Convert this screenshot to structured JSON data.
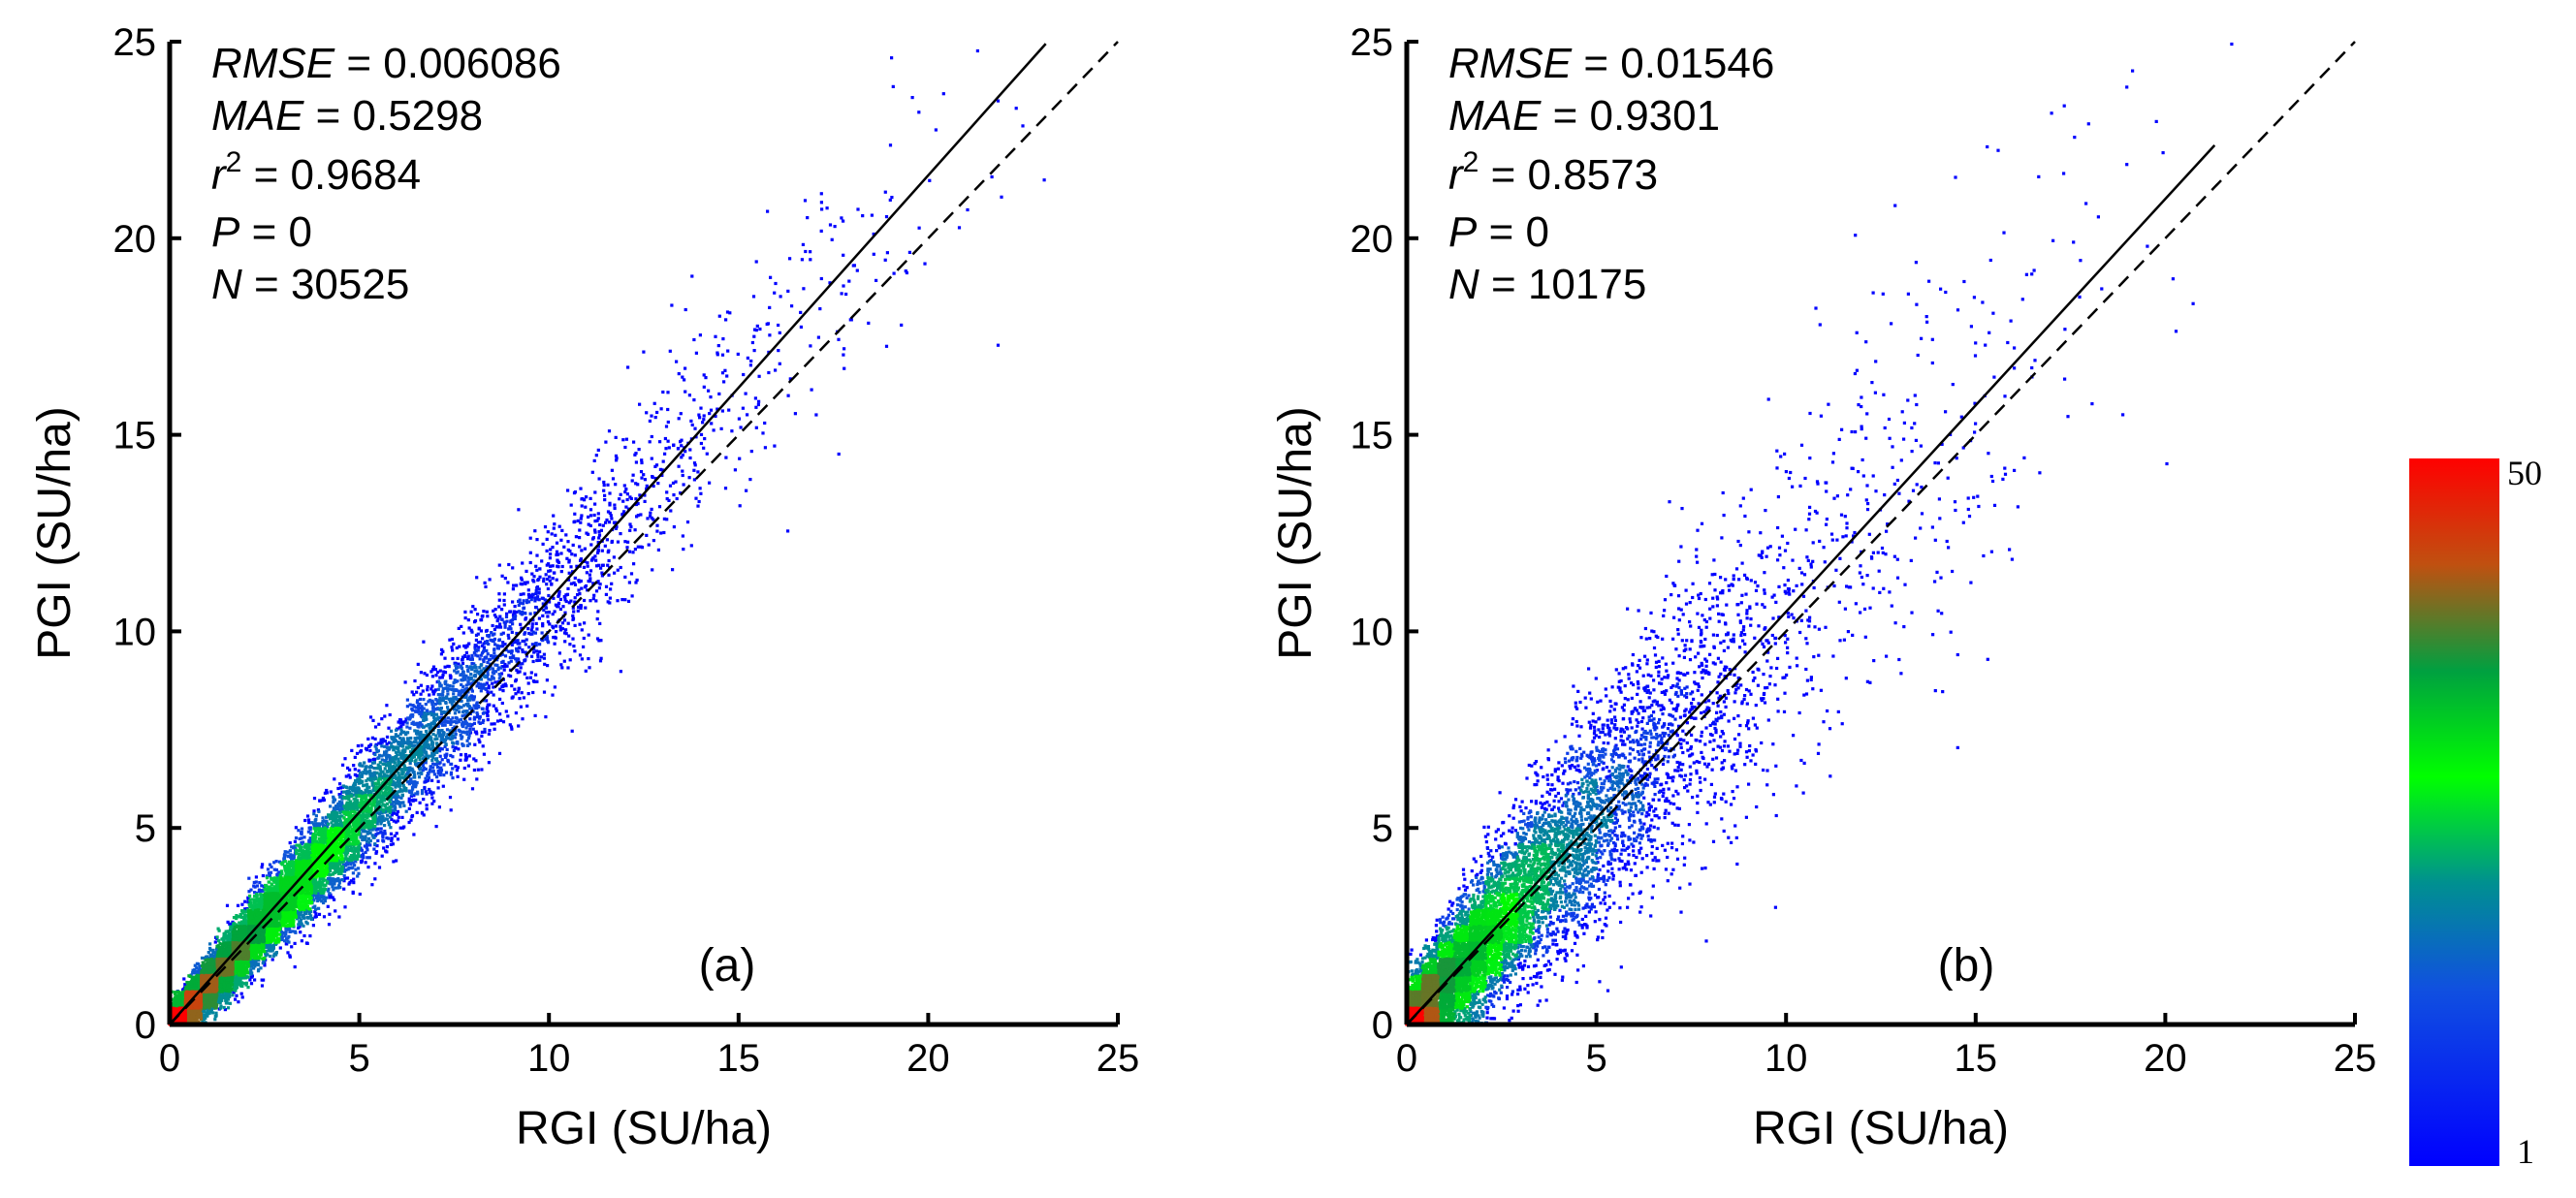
{
  "colors": {
    "background": "#ffffff",
    "axis": "#000000",
    "fit_line": "#000000",
    "one_to_one_line": "#000000",
    "density_low": "#0000ff",
    "density_mid": "#00e000",
    "density_high": "#ff0000"
  },
  "chart_data": [
    {
      "type": "scatter",
      "panel_label": "(a)",
      "xlabel": "RGI (SU/ha)",
      "ylabel": "PGI (SU/ha)",
      "xlim": [
        0,
        25
      ],
      "ylim": [
        0,
        25
      ],
      "x_ticks": [
        0,
        5,
        10,
        15,
        20,
        25
      ],
      "y_ticks": [
        0,
        5,
        10,
        15,
        20,
        25
      ],
      "stats": [
        {
          "var": "RMSE",
          "value": "0.006086"
        },
        {
          "var": "MAE",
          "value": "0.5298"
        },
        {
          "var": "r",
          "sup": "2",
          "value": "0.9684"
        },
        {
          "var": "P",
          "value": "0"
        },
        {
          "var": "N",
          "value": "30525"
        }
      ],
      "fit_line": {
        "slope": 1.08,
        "intercept": 0.0,
        "x_end": 23.1,
        "style": "solid"
      },
      "one_to_one_line": {
        "slope": 1.0,
        "intercept": 0.0,
        "x_end": 25,
        "style": "dashed"
      },
      "scatter_model": {
        "n_points": 30525,
        "x_rate": 0.3,
        "noise_sd_min": 0.25,
        "noise_sd_factor": 0.085,
        "bias": -0.1,
        "seed": 11,
        "x_max": 24
      }
    },
    {
      "type": "scatter",
      "panel_label": "(b)",
      "xlabel": "RGI (SU/ha)",
      "ylabel": "PGI (SU/ha)",
      "xlim": [
        0,
        25
      ],
      "ylim": [
        0,
        25
      ],
      "x_ticks": [
        0,
        5,
        10,
        15,
        20,
        25
      ],
      "y_ticks": [
        0,
        5,
        10,
        15,
        20,
        25
      ],
      "stats": [
        {
          "var": "RMSE",
          "value": "0.01546"
        },
        {
          "var": "MAE",
          "value": "0.9301"
        },
        {
          "var": "r",
          "sup": "2",
          "value": "0.8573"
        },
        {
          "var": "P",
          "value": "0"
        },
        {
          "var": "N",
          "value": "10175"
        }
      ],
      "fit_line": {
        "slope": 1.05,
        "intercept": 0.0,
        "x_end": 21.3,
        "style": "solid"
      },
      "one_to_one_line": {
        "slope": 1.0,
        "intercept": 0.0,
        "x_end": 25,
        "style": "dashed"
      },
      "scatter_model": {
        "n_points": 10175,
        "x_rate": 0.32,
        "noise_sd_min": 0.5,
        "noise_sd_factor": 0.18,
        "bias": 0.0,
        "seed": 29,
        "x_max": 22
      }
    }
  ],
  "colorbar": {
    "min_label": "1",
    "max_label": "50",
    "min": 1,
    "max": 50,
    "stops": [
      "#0000ff",
      "#1050e0",
      "#009090",
      "#00ff00",
      "#00a040",
      "#c05010",
      "#ff0000"
    ]
  }
}
